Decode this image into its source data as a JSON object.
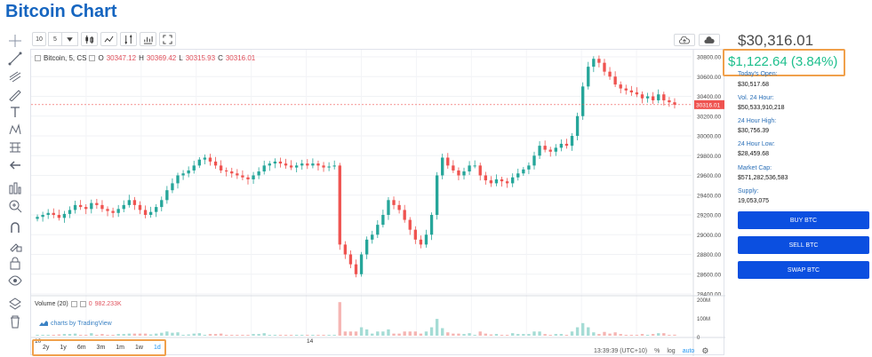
{
  "page": {
    "title": "Bitcoin Chart"
  },
  "toolbar": {
    "interval": "10",
    "resolution": "5",
    "dropdown_icon": "caret-down-icon",
    "icons": [
      "candles-icon",
      "line-style-icon",
      "compare-icon",
      "indicators-icon",
      "fullscreen-icon"
    ]
  },
  "cloud": {
    "icons": [
      "cloud-upload-icon",
      "cloud-download-icon"
    ]
  },
  "legend": {
    "symbol": "Bitcoin, 5, CS",
    "open_label": "O",
    "open": "30347.12",
    "high_label": "H",
    "high": "30369.42",
    "low_label": "L",
    "low": "30315.93",
    "close_label": "C",
    "close": "30316.01"
  },
  "volume": {
    "label": "Volume (20)",
    "value_prefix": "0",
    "value": "982.233K"
  },
  "branding": {
    "text": "charts by TradingView"
  },
  "chart_data": {
    "type": "candlestick",
    "y_axis_labels": [
      "30800.00",
      "30600.00",
      "30400.00",
      "30200.00",
      "30000.00",
      "29800.00",
      "29600.00",
      "29400.00",
      "29200.00",
      "29000.00",
      "28800.00",
      "28600.00",
      "28400.00"
    ],
    "ylim": [
      28400,
      30800
    ],
    "last_price_label": "30316.01",
    "volume_axis_labels": [
      "200M",
      "100M",
      "0"
    ],
    "x_tick_labels": [
      "13",
      "14"
    ],
    "close_series": [
      29180,
      29200,
      29220,
      29200,
      29170,
      29210,
      29250,
      29300,
      29280,
      29260,
      29320,
      29300,
      29260,
      29240,
      29220,
      29260,
      29300,
      29350,
      29300,
      29250,
      29200,
      29230,
      29280,
      29350,
      29450,
      29520,
      29600,
      29620,
      29650,
      29700,
      29760,
      29780,
      29740,
      29700,
      29650,
      29640,
      29620,
      29600,
      29580,
      29560,
      29600,
      29640,
      29700,
      29720,
      29740,
      29720,
      29700,
      29680,
      29700,
      29720,
      29700,
      29720,
      29700,
      29680,
      29690,
      29700,
      28900,
      28800,
      28700,
      28600,
      28800,
      28950,
      29000,
      29100,
      29200,
      29350,
      29300,
      29250,
      29150,
      29050,
      28950,
      28900,
      29000,
      29200,
      29600,
      29780,
      29700,
      29650,
      29600,
      29640,
      29700,
      29700,
      29600,
      29550,
      29520,
      29560,
      29540,
      29520,
      29580,
      29620,
      29660,
      29700,
      29800,
      29900,
      29860,
      29840,
      29880,
      29920,
      29900,
      30000,
      30200,
      30500,
      30700,
      30780,
      30740,
      30650,
      30600,
      30520,
      30480,
      30460,
      30440,
      30420,
      30380,
      30400,
      30360,
      30420,
      30360,
      30340,
      30316
    ]
  },
  "time_axis": {
    "left_label": "10",
    "right_label": "13:39:39 (UTC+10)"
  },
  "bottom_bar": {
    "ranges": [
      "2y",
      "1y",
      "6m",
      "3m",
      "1m",
      "1w",
      "1d"
    ],
    "active_range": "1d",
    "percent": "%",
    "log": "log",
    "auto": "auto",
    "settings_icon": "gear-icon"
  },
  "market": {
    "price": "$30,316.01",
    "change": "$1,122.64 (3.84%)",
    "change_color": "#1dbf8d",
    "stats": [
      {
        "label": "Today's Open:",
        "value": "$30,517.68"
      },
      {
        "label": "Vol. 24 Hour:",
        "value": "$50,533,910,218"
      },
      {
        "label": "24 Hour High:",
        "value": "$30,756.39"
      },
      {
        "label": "24 Hour Low:",
        "value": "$28,459.68"
      },
      {
        "label": "Market Cap:",
        "value": "$571,282,536,583"
      },
      {
        "label": "Supply:",
        "value": "19,053,075"
      }
    ]
  },
  "actions": {
    "buy": "BUY BTC",
    "sell": "SELL BTC",
    "swap": "SWAP BTC",
    "color": "#0b4fe0"
  },
  "left_tools": [
    "crosshair-icon",
    "trendline-icon",
    "fib-icon",
    "brush-icon",
    "text-icon",
    "pattern-icon",
    "measure-icon",
    "back-arrow-icon",
    "zoom-icon",
    "magnet-icon",
    "lock-drawing-icon",
    "lock-icon",
    "eye-icon",
    "layers-icon",
    "trash-icon"
  ]
}
